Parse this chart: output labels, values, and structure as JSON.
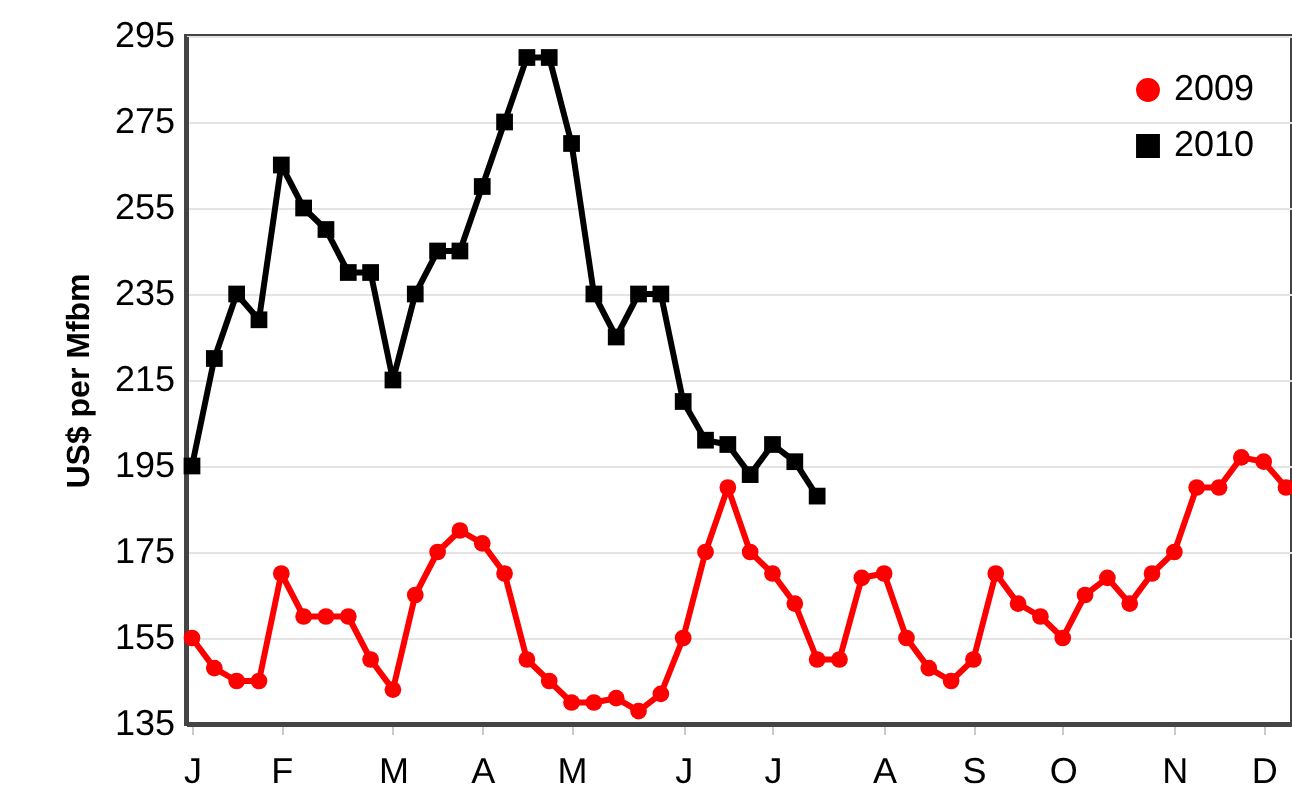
{
  "chart_data": {
    "type": "line",
    "ylabel": "US$ per Mfbm",
    "categories": [
      "J",
      null,
      null,
      null,
      "F",
      null,
      null,
      null,
      null,
      "M",
      null,
      null,
      null,
      "A",
      null,
      null,
      null,
      "M",
      null,
      null,
      null,
      null,
      "J",
      null,
      null,
      null,
      "J",
      null,
      null,
      null,
      null,
      "A",
      null,
      null,
      null,
      "S",
      null,
      null,
      null,
      "O",
      null,
      null,
      null,
      null,
      "N",
      null,
      null,
      null,
      "D",
      null
    ],
    "series": [
      {
        "name": "2009",
        "color": "#ff0000",
        "marker": "circle",
        "values": [
          155,
          148,
          145,
          145,
          170,
          160,
          160,
          160,
          150,
          143,
          165,
          175,
          180,
          177,
          170,
          150,
          145,
          140,
          140,
          141,
          138,
          142,
          155,
          175,
          190,
          175,
          170,
          163,
          150,
          150,
          169,
          170,
          155,
          148,
          145,
          150,
          170,
          163,
          160,
          155,
          165,
          169,
          163,
          170,
          175,
          190,
          190,
          197,
          196,
          190
        ]
      },
      {
        "name": "2010",
        "color": "#000000",
        "marker": "square",
        "values": [
          195,
          220,
          235,
          229,
          265,
          255,
          250,
          240,
          240,
          215,
          235,
          245,
          245,
          260,
          275,
          290,
          290,
          270,
          235,
          225,
          235,
          235,
          210,
          201,
          200,
          193,
          200,
          196,
          188,
          null,
          null,
          null,
          null,
          null,
          null,
          null,
          null,
          null,
          null,
          null,
          null,
          null,
          null,
          null,
          null,
          null,
          null,
          null,
          null,
          null
        ]
      }
    ],
    "ylim": [
      135,
      295
    ],
    "yticks": [
      135,
      155,
      175,
      195,
      215,
      235,
      255,
      275,
      295
    ],
    "grid": "y",
    "legend": "top right",
    "line_style": "solid"
  }
}
